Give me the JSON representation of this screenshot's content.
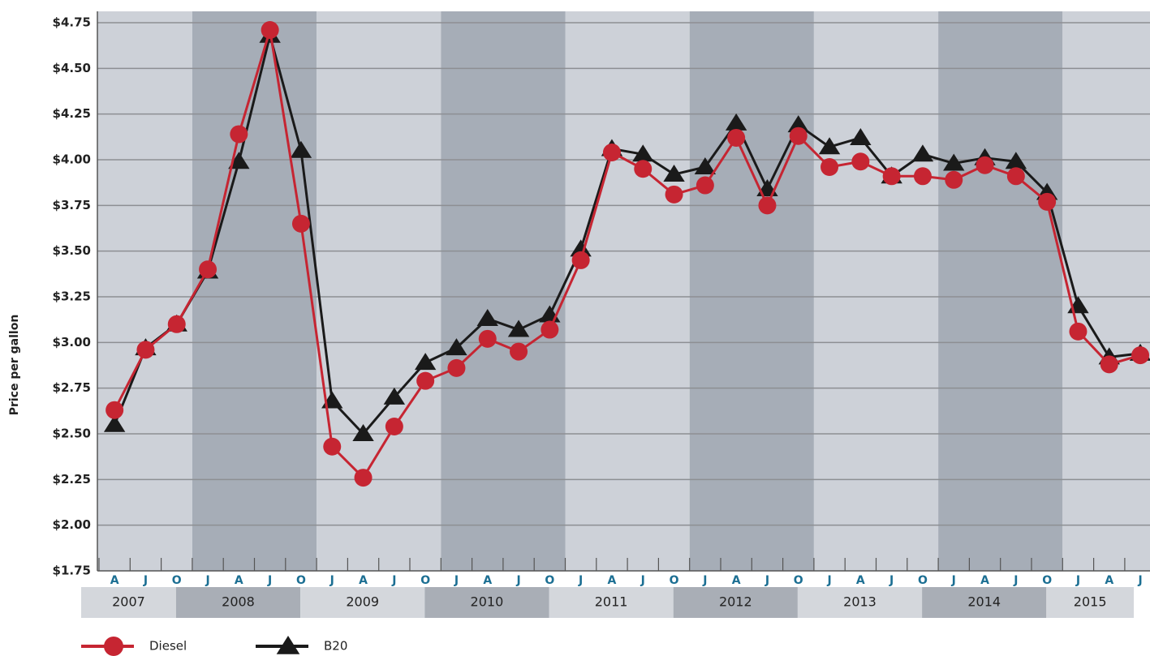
{
  "chart_data": {
    "type": "line",
    "y_label": "Price per gallon",
    "categories": [
      "A",
      "J",
      "O",
      "J",
      "A",
      "J",
      "O",
      "J",
      "A",
      "J",
      "O",
      "J",
      "A",
      "J",
      "O",
      "J",
      "A",
      "J",
      "O",
      "J",
      "A",
      "J",
      "O",
      "J",
      "A",
      "J",
      "O",
      "J",
      "A",
      "J",
      "O",
      "J",
      "A",
      "J"
    ],
    "years": [
      "2007",
      "2008",
      "2009",
      "2010",
      "2011",
      "2012",
      "2013",
      "2014",
      "2015"
    ],
    "series": [
      {
        "name": "Diesel",
        "color": "#c62532",
        "marker": "circle",
        "values": [
          2.63,
          2.96,
          3.1,
          3.4,
          4.14,
          4.71,
          3.65,
          2.43,
          2.26,
          2.54,
          2.79,
          2.86,
          3.02,
          2.95,
          3.07,
          3.45,
          4.04,
          3.95,
          3.81,
          3.86,
          4.12,
          3.75,
          4.13,
          3.96,
          3.99,
          3.91,
          3.91,
          3.89,
          3.97,
          3.91,
          3.77,
          3.06,
          2.88,
          2.93
        ]
      },
      {
        "name": "B20",
        "color": "#1a1a1a",
        "marker": "triangle",
        "values": [
          2.55,
          2.97,
          3.1,
          3.39,
          3.99,
          4.68,
          4.05,
          2.68,
          2.5,
          2.7,
          2.89,
          2.97,
          3.13,
          3.07,
          3.15,
          3.51,
          4.06,
          4.03,
          3.92,
          3.96,
          4.2,
          3.84,
          4.19,
          4.07,
          4.12,
          3.91,
          4.03,
          3.98,
          4.01,
          3.99,
          3.82,
          3.2,
          2.92,
          2.94
        ]
      }
    ],
    "ylim": [
      1.75,
      4.75
    ],
    "yticks": [
      {
        "value": 1.75,
        "label": "$1.75"
      },
      {
        "value": 2.0,
        "label": "$2.00"
      },
      {
        "value": 2.25,
        "label": "$2.25"
      },
      {
        "value": 2.5,
        "label": "$2.50"
      },
      {
        "value": 2.75,
        "label": "$2.75"
      },
      {
        "value": 3.0,
        "label": "$3.00"
      },
      {
        "value": 3.25,
        "label": "$3.25"
      },
      {
        "value": 3.5,
        "label": "$3.50"
      },
      {
        "value": 3.75,
        "label": "$3.75"
      },
      {
        "value": 4.0,
        "label": "$4.00"
      },
      {
        "value": 4.25,
        "label": "$4.25"
      },
      {
        "value": 4.5,
        "label": "$4.50"
      },
      {
        "value": 4.75,
        "label": "$4.75"
      }
    ],
    "grid": true,
    "legend": "bottom-left"
  }
}
